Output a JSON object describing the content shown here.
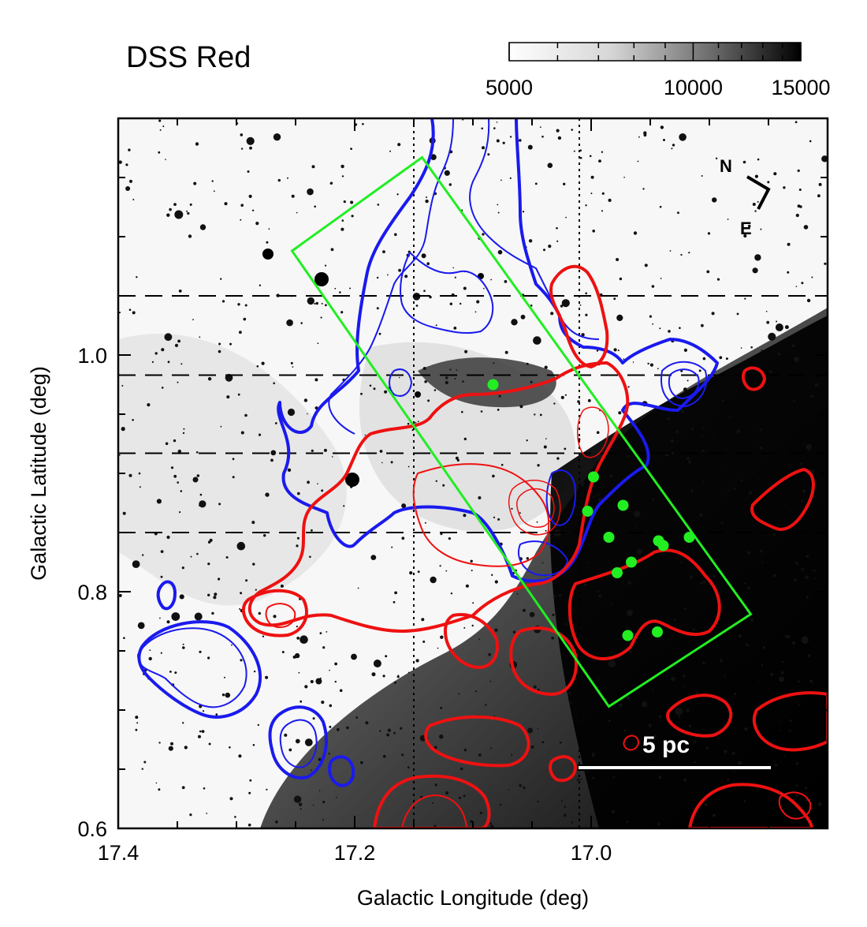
{
  "title": "DSS Red",
  "colorbar": {
    "ticks": [
      {
        "value": 5000,
        "label": "5000"
      },
      {
        "value": 10000,
        "label": "10000"
      },
      {
        "value": 15000,
        "label": "15000"
      }
    ],
    "range": [
      5000,
      15000
    ],
    "scale": "log"
  },
  "chart_data": {
    "type": "image",
    "title": "DSS Red",
    "xlabel": "Galactic Longitude (deg)",
    "ylabel": "Galactic Latitude (deg)",
    "xlim": [
      17.4,
      16.8
    ],
    "ylim": [
      0.6,
      1.2
    ],
    "xticks": [
      {
        "value": 17.4,
        "label": "17.4"
      },
      {
        "value": 17.2,
        "label": "17.2"
      },
      {
        "value": 17.0,
        "label": "17.0"
      }
    ],
    "yticks": [
      {
        "value": 0.6,
        "label": "0.6"
      },
      {
        "value": 0.8,
        "label": "0.8"
      },
      {
        "value": 1.0,
        "label": "1.0"
      }
    ],
    "vertical_dotted_lines": [
      17.15,
      17.01
    ],
    "horizontal_dashed_lines": [
      1.05,
      0.983,
      0.917,
      0.85
    ],
    "compass": {
      "north_label": "N",
      "east_label": "E"
    },
    "scale_bar": {
      "label": "5 pc"
    },
    "green_points": [
      {
        "l": 17.083,
        "b": 0.975
      },
      {
        "l": 16.998,
        "b": 0.897
      },
      {
        "l": 17.003,
        "b": 0.868
      },
      {
        "l": 16.973,
        "b": 0.873
      },
      {
        "l": 16.985,
        "b": 0.846
      },
      {
        "l": 16.943,
        "b": 0.843
      },
      {
        "l": 16.939,
        "b": 0.839
      },
      {
        "l": 16.917,
        "b": 0.846
      },
      {
        "l": 16.966,
        "b": 0.825
      },
      {
        "l": 16.978,
        "b": 0.816
      },
      {
        "l": 16.969,
        "b": 0.763
      },
      {
        "l": 16.944,
        "b": 0.766
      }
    ],
    "green_box": [
      {
        "l": 17.143,
        "b": 1.167
      },
      {
        "l": 17.253,
        "b": 1.088
      },
      {
        "l": 16.985,
        "b": 0.703
      },
      {
        "l": 16.865,
        "b": 0.781
      }
    ]
  }
}
